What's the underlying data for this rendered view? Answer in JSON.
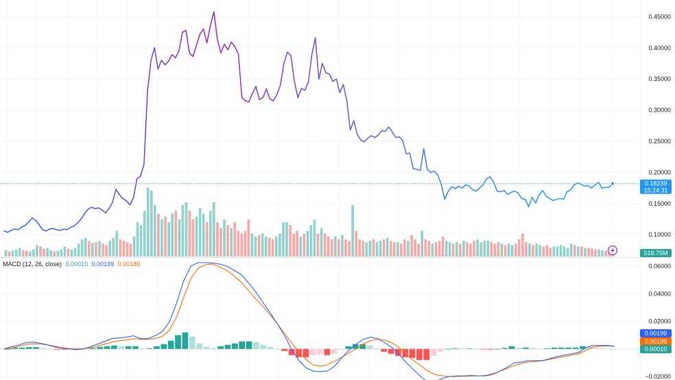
{
  "chart_data": [
    {
      "type": "line",
      "panel": "price",
      "y_axis_ticks": [
        "0.45000",
        "0.40000",
        "0.35000",
        "0.30000",
        "0.25000",
        "0.20000",
        "0.15000",
        "0.10000"
      ],
      "ylim": [
        0.065,
        0.468
      ],
      "last_price": "0.18239",
      "countdown": "15:24:31",
      "colors": {
        "line_start": "#2962ff",
        "line_peak": "#9c27b0",
        "line_end": "#2196f3",
        "price_tag": "#2196f3"
      },
      "series": [
        {
          "values": [
            0.106,
            0.104,
            0.107,
            0.109,
            0.108,
            0.112,
            0.115,
            0.12,
            0.127,
            0.123,
            0.116,
            0.108,
            0.106,
            0.109,
            0.11,
            0.108,
            0.107,
            0.109,
            0.108,
            0.112,
            0.114,
            0.119,
            0.125,
            0.134,
            0.141,
            0.144,
            0.142,
            0.143,
            0.14,
            0.135,
            0.142,
            0.152,
            0.173,
            0.164,
            0.158,
            0.154,
            0.148,
            0.16,
            0.19,
            0.194,
            0.213,
            0.33,
            0.38,
            0.4,
            0.366,
            0.38,
            0.373,
            0.378,
            0.389,
            0.384,
            0.395,
            0.425,
            0.428,
            0.392,
            0.386,
            0.404,
            0.422,
            0.43,
            0.408,
            0.436,
            0.458,
            0.413,
            0.392,
            0.406,
            0.397,
            0.409,
            0.402,
            0.39,
            0.32,
            0.315,
            0.313,
            0.327,
            0.338,
            0.317,
            0.32,
            0.334,
            0.318,
            0.315,
            0.325,
            0.34,
            0.375,
            0.393,
            0.388,
            0.347,
            0.32,
            0.335,
            0.332,
            0.345,
            0.389,
            0.416,
            0.35,
            0.375,
            0.36,
            0.358,
            0.346,
            0.35,
            0.328,
            0.341,
            0.315,
            0.268,
            0.283,
            0.261,
            0.252,
            0.249,
            0.255,
            0.259,
            0.256,
            0.26,
            0.267,
            0.266,
            0.273,
            0.265,
            0.256,
            0.257,
            0.251,
            0.23,
            0.231,
            0.206,
            0.205,
            0.203,
            0.238,
            0.205,
            0.2,
            0.202,
            0.196,
            0.181,
            0.157,
            0.17,
            0.177,
            0.174,
            0.178,
            0.175,
            0.18,
            0.178,
            0.172,
            0.17,
            0.175,
            0.18,
            0.19,
            0.193,
            0.184,
            0.17,
            0.169,
            0.171,
            0.165,
            0.168,
            0.17,
            0.167,
            0.158,
            0.157,
            0.145,
            0.16,
            0.151,
            0.164,
            0.171,
            0.162,
            0.158,
            0.155,
            0.157,
            0.158,
            0.157,
            0.169,
            0.172,
            0.18,
            0.183,
            0.181,
            0.178,
            0.179,
            0.175,
            0.18,
            0.184,
            0.175,
            0.176,
            0.176,
            0.182
          ]
        }
      ]
    },
    {
      "type": "bar",
      "panel": "volume",
      "label": "518.75M",
      "colors": {
        "up": "#26a69a",
        "down": "#ef5350",
        "tag": "#26a69a"
      },
      "values": [
        0.22,
        0.18,
        0.2,
        0.25,
        0.3,
        0.22,
        0.2,
        0.18,
        0.25,
        0.4,
        0.35,
        0.28,
        0.3,
        0.22,
        0.18,
        0.2,
        0.25,
        0.35,
        0.28,
        0.25,
        0.3,
        0.45,
        0.6,
        0.65,
        0.55,
        0.48,
        0.5,
        0.55,
        0.45,
        0.4,
        0.55,
        0.65,
        0.9,
        0.6,
        0.55,
        0.5,
        0.45,
        0.7,
        1.2,
        1.1,
        1.6,
        2.4,
        2.3,
        1.8,
        1.5,
        1.3,
        1.4,
        1.2,
        1.5,
        1.6,
        1.3,
        1.8,
        1.9,
        1.6,
        1.3,
        1.4,
        1.7,
        1.5,
        1.2,
        1.6,
        1.9,
        1.2,
        1.0,
        1.3,
        1.1,
        1.0,
        1.2,
        0.9,
        0.8,
        0.9,
        1.3,
        0.8,
        0.7,
        0.75,
        0.8,
        0.7,
        0.65,
        0.6,
        0.7,
        0.8,
        1.2,
        1.2,
        1.1,
        0.8,
        0.9,
        0.7,
        0.8,
        0.9,
        1.1,
        1.3,
        0.8,
        1.0,
        0.8,
        0.7,
        0.6,
        0.7,
        0.6,
        0.75,
        0.6,
        0.55,
        1.8,
        0.9,
        0.6,
        0.55,
        0.5,
        0.55,
        0.6,
        0.5,
        0.55,
        0.6,
        0.65,
        0.55,
        0.5,
        0.5,
        0.45,
        0.6,
        0.55,
        0.75,
        0.6,
        0.45,
        0.9,
        0.6,
        0.55,
        0.45,
        0.5,
        0.55,
        0.7,
        0.55,
        0.5,
        0.45,
        0.5,
        0.45,
        0.55,
        0.5,
        0.45,
        0.55,
        0.6,
        0.5,
        0.55,
        0.55,
        0.5,
        0.45,
        0.5,
        0.45,
        0.4,
        0.45,
        0.4,
        0.45,
        0.6,
        0.8,
        0.5,
        0.45,
        0.4,
        0.45,
        0.4,
        0.35,
        0.4,
        0.3,
        0.35,
        0.35,
        0.4,
        0.35,
        0.3,
        0.45,
        0.4,
        0.35,
        0.35,
        0.3,
        0.3,
        0.28,
        0.25,
        0.25,
        0.22,
        0.2,
        0.18,
        0.2
      ],
      "direction": [
        1,
        0,
        1,
        1,
        1,
        0,
        0,
        1,
        1,
        1,
        0,
        0,
        1,
        1,
        0,
        1,
        1,
        1,
        0,
        1,
        1,
        1,
        1,
        1,
        0,
        1,
        0,
        1,
        0,
        0,
        1,
        1,
        1,
        0,
        0,
        0,
        0,
        1,
        1,
        1,
        1,
        1,
        1,
        1,
        0,
        1,
        0,
        1,
        1,
        0,
        1,
        1,
        1,
        0,
        0,
        1,
        1,
        1,
        0,
        1,
        1,
        0,
        0,
        1,
        0,
        1,
        0,
        0,
        0,
        0,
        0,
        1,
        1,
        0,
        1,
        1,
        0,
        0,
        1,
        1,
        1,
        1,
        0,
        0,
        0,
        1,
        0,
        1,
        1,
        1,
        0,
        1,
        0,
        0,
        0,
        1,
        0,
        1,
        0,
        0,
        1,
        0,
        0,
        0,
        1,
        1,
        0,
        1,
        1,
        0,
        1,
        0,
        0,
        1,
        0,
        0,
        1,
        0,
        0,
        0,
        1,
        0,
        0,
        1,
        0,
        0,
        0,
        1,
        1,
        0,
        1,
        0,
        1,
        0,
        0,
        0,
        1,
        1,
        1,
        1,
        0,
        0,
        0,
        1,
        0,
        1,
        1,
        0,
        0,
        0,
        0,
        1,
        0,
        1,
        1,
        0,
        0,
        0,
        1,
        1,
        1,
        1,
        1,
        1,
        0,
        1,
        0,
        1,
        0,
        0,
        0,
        1,
        1,
        0,
        0,
        0,
        1
      ]
    },
    {
      "type": "line",
      "panel": "macd",
      "title": "MACD (12, 26, close)",
      "legend_values": [
        "0.00010",
        "0.00199",
        "0.00189"
      ],
      "y_axis_ticks": [
        "0.06000",
        "0.04000",
        "0.02000",
        "−0.02000"
      ],
      "ylim": [
        -0.0225,
        0.064
      ],
      "tags": [
        "0.00199",
        "0.00189",
        "0.00010"
      ],
      "colors": {
        "macd": "#2962ff",
        "signal": "#ff6d00",
        "hist_pos_strong": "#26a69a",
        "hist_pos_weak": "#b2dfdb",
        "hist_neg_strong": "#ff5252",
        "hist_neg_weak": "#ffcdd2",
        "tag_macd": "#2962ff",
        "tag_signal": "#ff6d00",
        "tag_hist": "#26a69a"
      },
      "series": [
        {
          "name": "MACD",
          "values": [
            0.0,
            0.0015,
            0.0028,
            0.0045,
            0.005,
            0.0042,
            0.003,
            0.0015,
            0.0005,
            0.0,
            -0.0005,
            0.0,
            0.0015,
            0.0035,
            0.0055,
            0.0075,
            0.008,
            0.0085,
            0.0095,
            0.0075,
            0.0075,
            0.0095,
            0.0125,
            0.0195,
            0.033,
            0.0495,
            0.06,
            0.0625,
            0.0625,
            0.0622,
            0.0615,
            0.06,
            0.057,
            0.054,
            0.048,
            0.0415,
            0.034,
            0.0265,
            0.0185,
            0.01,
            0.0,
            -0.008,
            -0.0135,
            -0.016,
            -0.0165,
            -0.016,
            -0.0125,
            -0.0065,
            -0.001,
            0.0035,
            0.007,
            0.0085,
            0.0075,
            0.0045,
            0.001,
            -0.004,
            -0.01,
            -0.015,
            -0.02,
            -0.024,
            -0.0235,
            -0.0215,
            -0.02,
            -0.0195,
            -0.0195,
            -0.0192,
            -0.0195,
            -0.0195,
            -0.0185,
            -0.0162,
            -0.0135,
            -0.01,
            -0.0095,
            -0.0085,
            -0.0085,
            -0.0085,
            -0.007,
            -0.0055,
            -0.0045,
            -0.0035,
            -0.0025,
            0.001,
            0.0025,
            0.0025,
            0.0025,
            0.002
          ]
        },
        {
          "name": "Signal",
          "values": [
            0.0,
            0.0005,
            0.0018,
            0.0032,
            0.0037,
            0.0036,
            0.003,
            0.002,
            0.001,
            0.0003,
            0.0,
            0.0002,
            0.0008,
            0.002,
            0.0035,
            0.005,
            0.006,
            0.0065,
            0.0075,
            0.007,
            0.007,
            0.0075,
            0.009,
            0.0135,
            0.023,
            0.0375,
            0.051,
            0.0585,
            0.061,
            0.0615,
            0.0595,
            0.057,
            0.053,
            0.0485,
            0.0425,
            0.0365,
            0.031,
            0.025,
            0.0185,
            0.0115,
            0.0045,
            -0.002,
            -0.0075,
            -0.0115,
            -0.0125,
            -0.0115,
            -0.009,
            -0.006,
            -0.003,
            0.0,
            0.0035,
            0.006,
            0.007,
            0.0065,
            0.0045,
            0.001,
            -0.004,
            -0.0085,
            -0.012,
            -0.016,
            -0.0185,
            -0.0195,
            -0.02,
            -0.02,
            -0.0198,
            -0.0196,
            -0.0195,
            -0.0192,
            -0.018,
            -0.0162,
            -0.0142,
            -0.012,
            -0.0105,
            -0.0095,
            -0.0092,
            -0.0085,
            -0.0075,
            -0.0065,
            -0.0055,
            -0.0045,
            -0.0035,
            -0.001,
            0.0012,
            0.002,
            0.0022,
            0.0019
          ]
        }
      ],
      "histogram": [
        0.0,
        0.001,
        0.001,
        0.0013,
        0.0013,
        0.0006,
        0.0,
        -0.0005,
        -0.0005,
        -0.0003,
        -0.0005,
        -0.0002,
        0.0007,
        0.0015,
        0.002,
        0.0025,
        0.002,
        0.002,
        0.002,
        0.0005,
        0.0005,
        0.002,
        0.0035,
        0.006,
        0.01,
        0.012,
        0.009,
        0.004,
        0.0015,
        0.0007,
        0.002,
        0.003,
        0.004,
        0.0055,
        0.0055,
        0.005,
        0.003,
        0.0015,
        0.0,
        -0.0015,
        -0.0045,
        -0.006,
        -0.006,
        -0.0045,
        -0.004,
        -0.0045,
        -0.0035,
        -0.0005,
        0.002,
        0.0035,
        0.0035,
        0.0025,
        0.0005,
        -0.002,
        -0.0035,
        -0.005,
        -0.006,
        -0.0065,
        -0.008,
        -0.008,
        -0.005,
        -0.002,
        0.0,
        0.0005,
        0.0003,
        0.0004,
        0.0,
        -0.0003,
        -0.0005,
        0.0,
        0.0007,
        0.002,
        0.001,
        0.001,
        0.0007,
        0.0,
        0.0005,
        0.001,
        0.001,
        0.001,
        0.001,
        0.002,
        0.0013,
        0.0005,
        0.0003,
        0.0001
      ]
    }
  ]
}
